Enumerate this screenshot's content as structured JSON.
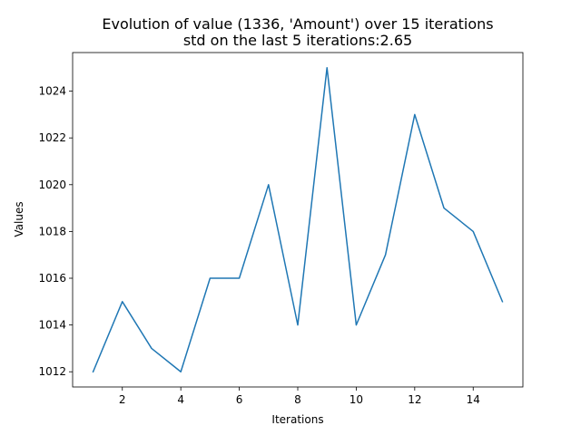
{
  "chart_data": {
    "type": "line",
    "title": "Evolution of value (1336, 'Amount') over 15 iterations",
    "subtitle": "std on the last 5 iterations:2.65",
    "xlabel": "Iterations",
    "ylabel": "Values",
    "x": [
      1,
      2,
      3,
      4,
      5,
      6,
      7,
      8,
      9,
      10,
      11,
      12,
      13,
      14,
      15
    ],
    "series": [
      {
        "values": [
          1012,
          1015,
          1013,
          1012,
          1016,
          1016,
          1020,
          1014,
          1025,
          1014,
          1017,
          1023,
          1019,
          1018,
          1015
        ]
      }
    ],
    "xlim": [
      0.3,
      15.7
    ],
    "ylim": [
      1011.35,
      1025.65
    ],
    "xticks": [
      2,
      4,
      6,
      8,
      10,
      12,
      14
    ],
    "yticks": [
      1012,
      1014,
      1016,
      1018,
      1020,
      1022,
      1024
    ],
    "grid": false,
    "line_color": "#1f77b4"
  }
}
